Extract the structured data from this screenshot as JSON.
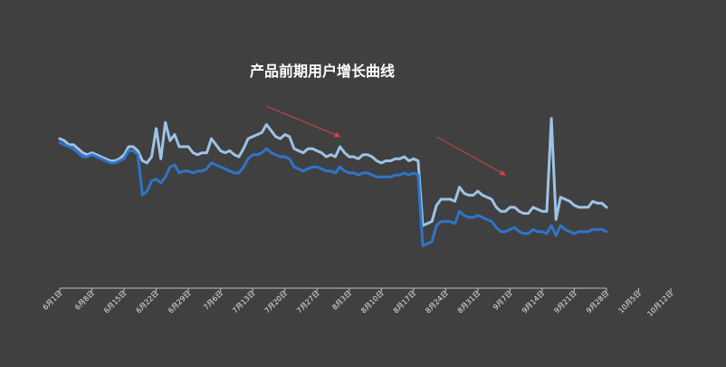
{
  "chart_data": {
    "type": "line",
    "title": "产品前期用户增长曲线",
    "xlabel": "",
    "ylabel": "",
    "ylim": [
      0,
      1
    ],
    "grid": false,
    "legend": "none",
    "x_ticks": [
      "6月1日",
      "6月8日",
      "6月15日",
      "6月22日",
      "6月29日",
      "7月6日",
      "7月13日",
      "7月20日",
      "7月27日",
      "8月3日",
      "8月10日",
      "8月17日",
      "8月24日",
      "8月31日",
      "9月7日",
      "9月14日",
      "9月21日",
      "9月28日",
      "10月5日",
      "10月12日"
    ],
    "series": [
      {
        "color": "#9dc3e6",
        "values": [
          0.74,
          0.73,
          0.71,
          0.71,
          0.69,
          0.67,
          0.66,
          0.67,
          0.66,
          0.65,
          0.64,
          0.63,
          0.63,
          0.64,
          0.66,
          0.7,
          0.7,
          0.68,
          0.63,
          0.62,
          0.65,
          0.79,
          0.64,
          0.82,
          0.73,
          0.76,
          0.7,
          0.7,
          0.7,
          0.67,
          0.66,
          0.67,
          0.67,
          0.74,
          0.71,
          0.68,
          0.67,
          0.68,
          0.66,
          0.65,
          0.69,
          0.74,
          0.75,
          0.76,
          0.77,
          0.81,
          0.78,
          0.75,
          0.74,
          0.76,
          0.75,
          0.69,
          0.68,
          0.67,
          0.69,
          0.69,
          0.68,
          0.67,
          0.65,
          0.66,
          0.65,
          0.7,
          0.67,
          0.65,
          0.65,
          0.64,
          0.66,
          0.66,
          0.65,
          0.63,
          0.62,
          0.63,
          0.63,
          0.64,
          0.64,
          0.65,
          0.63,
          0.64,
          0.63,
          0.31,
          0.32,
          0.33,
          0.41,
          0.44,
          0.44,
          0.44,
          0.43,
          0.5,
          0.47,
          0.46,
          0.46,
          0.48,
          0.46,
          0.45,
          0.44,
          0.4,
          0.38,
          0.38,
          0.4,
          0.4,
          0.38,
          0.37,
          0.37,
          0.4,
          0.39,
          0.38,
          0.38,
          0.84,
          0.34,
          0.45,
          0.44,
          0.43,
          0.41,
          0.4,
          0.4,
          0.4,
          0.43,
          0.42,
          0.42,
          0.4
        ]
      },
      {
        "color": "#2e75c9",
        "values": [
          0.72,
          0.71,
          0.7,
          0.69,
          0.67,
          0.65,
          0.65,
          0.66,
          0.65,
          0.64,
          0.63,
          0.62,
          0.62,
          0.63,
          0.64,
          0.68,
          0.68,
          0.66,
          0.46,
          0.48,
          0.53,
          0.54,
          0.52,
          0.55,
          0.6,
          0.61,
          0.57,
          0.58,
          0.58,
          0.57,
          0.58,
          0.58,
          0.59,
          0.62,
          0.61,
          0.6,
          0.59,
          0.58,
          0.57,
          0.57,
          0.6,
          0.64,
          0.66,
          0.66,
          0.67,
          0.69,
          0.67,
          0.66,
          0.65,
          0.65,
          0.64,
          0.6,
          0.59,
          0.58,
          0.59,
          0.6,
          0.6,
          0.59,
          0.58,
          0.58,
          0.57,
          0.6,
          0.58,
          0.57,
          0.57,
          0.56,
          0.57,
          0.57,
          0.56,
          0.55,
          0.55,
          0.55,
          0.55,
          0.56,
          0.56,
          0.57,
          0.56,
          0.57,
          0.56,
          0.21,
          0.22,
          0.23,
          0.31,
          0.33,
          0.33,
          0.33,
          0.32,
          0.38,
          0.36,
          0.35,
          0.35,
          0.36,
          0.35,
          0.34,
          0.33,
          0.3,
          0.28,
          0.28,
          0.29,
          0.3,
          0.28,
          0.27,
          0.27,
          0.29,
          0.28,
          0.28,
          0.27,
          0.31,
          0.26,
          0.31,
          0.29,
          0.28,
          0.27,
          0.28,
          0.28,
          0.28,
          0.29,
          0.29,
          0.29,
          0.28
        ]
      }
    ],
    "annotations": [
      {
        "type": "arrow",
        "color": "#d9414b",
        "from": {
          "x": 45,
          "y": 0.9
        },
        "to": {
          "x": 61,
          "y": 0.75
        }
      },
      {
        "type": "arrow",
        "color": "#d9414b",
        "from": {
          "x": 82,
          "y": 0.75
        },
        "to": {
          "x": 97,
          "y": 0.56
        }
      }
    ]
  }
}
